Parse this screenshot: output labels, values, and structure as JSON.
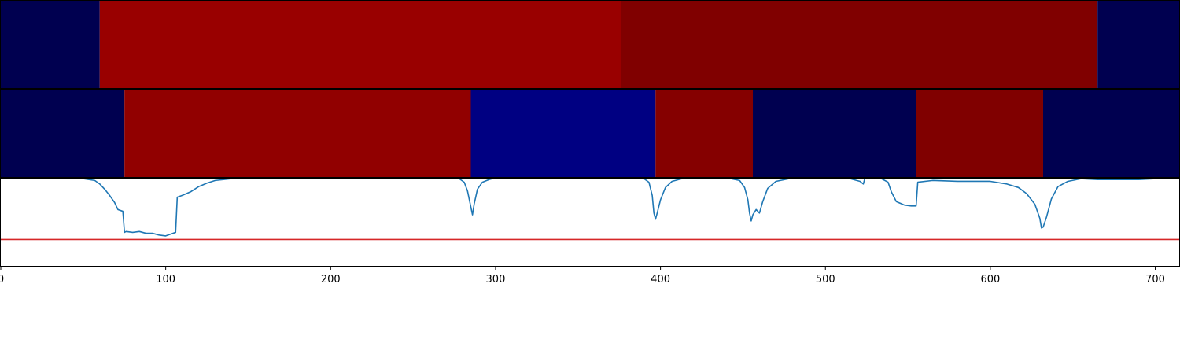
{
  "chart_data": {
    "type": "line",
    "title": "",
    "xlabel": "",
    "ylabel": "",
    "xlim": [
      0,
      715
    ],
    "ylim": [
      0,
      1
    ],
    "grid": false,
    "xticks": [
      0,
      100,
      200,
      300,
      400,
      500,
      600,
      700
    ],
    "segment_rows": [
      {
        "name": "",
        "segments": [
          {
            "start": 0,
            "end": 60,
            "color": "#000050"
          },
          {
            "start": 60,
            "end": 376,
            "color": "#990000"
          },
          {
            "start": 376,
            "end": 665,
            "color": "#800000"
          },
          {
            "start": 665,
            "end": 715,
            "color": "#000050"
          }
        ]
      },
      {
        "name": "",
        "segments": [
          {
            "start": 0,
            "end": 75,
            "color": "#000050"
          },
          {
            "start": 75,
            "end": 285,
            "color": "#910000"
          },
          {
            "start": 285,
            "end": 397,
            "color": "#000082"
          },
          {
            "start": 397,
            "end": 456,
            "color": "#850000"
          },
          {
            "start": 456,
            "end": 555,
            "color": "#000050"
          },
          {
            "start": 555,
            "end": 632,
            "color": "#800000"
          },
          {
            "start": 632,
            "end": 715,
            "color": "#000050"
          }
        ]
      }
    ],
    "series": [
      {
        "name": "",
        "color": "#1f77b4",
        "points": [
          [
            0,
            1.0
          ],
          [
            40,
            1.0
          ],
          [
            50,
            0.99
          ],
          [
            57,
            0.97
          ],
          [
            60,
            0.93
          ],
          [
            63,
            0.87
          ],
          [
            66,
            0.8
          ],
          [
            69,
            0.72
          ],
          [
            71,
            0.64
          ],
          [
            74,
            0.62
          ],
          [
            75,
            0.38
          ],
          [
            76,
            0.39
          ],
          [
            80,
            0.38
          ],
          [
            84,
            0.39
          ],
          [
            88,
            0.37
          ],
          [
            92,
            0.37
          ],
          [
            96,
            0.35
          ],
          [
            100,
            0.34
          ],
          [
            103,
            0.36
          ],
          [
            106,
            0.38
          ],
          [
            107,
            0.78
          ],
          [
            110,
            0.8
          ],
          [
            115,
            0.84
          ],
          [
            120,
            0.9
          ],
          [
            125,
            0.94
          ],
          [
            130,
            0.97
          ],
          [
            140,
            0.99
          ],
          [
            150,
            1.0
          ],
          [
            270,
            1.0
          ],
          [
            278,
            0.99
          ],
          [
            281,
            0.95
          ],
          [
            283,
            0.85
          ],
          [
            285,
            0.67
          ],
          [
            286,
            0.58
          ],
          [
            287,
            0.7
          ],
          [
            289,
            0.87
          ],
          [
            292,
            0.95
          ],
          [
            296,
            0.98
          ],
          [
            300,
            1.0
          ],
          [
            380,
            1.0
          ],
          [
            390,
            0.99
          ],
          [
            393,
            0.95
          ],
          [
            395,
            0.8
          ],
          [
            396,
            0.6
          ],
          [
            397,
            0.53
          ],
          [
            398,
            0.6
          ],
          [
            400,
            0.75
          ],
          [
            403,
            0.89
          ],
          [
            407,
            0.96
          ],
          [
            415,
            1.0
          ],
          [
            440,
            1.0
          ],
          [
            448,
            0.97
          ],
          [
            451,
            0.89
          ],
          [
            453,
            0.75
          ],
          [
            454,
            0.6
          ],
          [
            455,
            0.51
          ],
          [
            456,
            0.58
          ],
          [
            458,
            0.64
          ],
          [
            460,
            0.6
          ],
          [
            462,
            0.73
          ],
          [
            465,
            0.88
          ],
          [
            470,
            0.96
          ],
          [
            478,
            0.99
          ],
          [
            490,
            1.0
          ],
          [
            515,
            0.99
          ],
          [
            521,
            0.96
          ],
          [
            523,
            0.93
          ],
          [
            524,
            1.0
          ],
          [
            533,
            1.0
          ],
          [
            538,
            0.95
          ],
          [
            540,
            0.84
          ],
          [
            543,
            0.73
          ],
          [
            548,
            0.69
          ],
          [
            552,
            0.68
          ],
          [
            555,
            0.68
          ],
          [
            556,
            0.95
          ],
          [
            565,
            0.97
          ],
          [
            580,
            0.96
          ],
          [
            600,
            0.96
          ],
          [
            610,
            0.93
          ],
          [
            617,
            0.89
          ],
          [
            622,
            0.82
          ],
          [
            627,
            0.7
          ],
          [
            630,
            0.54
          ],
          [
            631,
            0.43
          ],
          [
            632,
            0.44
          ],
          [
            634,
            0.55
          ],
          [
            637,
            0.76
          ],
          [
            641,
            0.9
          ],
          [
            647,
            0.96
          ],
          [
            655,
            0.99
          ],
          [
            665,
            0.98
          ],
          [
            690,
            0.98
          ],
          [
            700,
            0.99
          ],
          [
            715,
            1.0
          ]
        ]
      }
    ],
    "threshold": {
      "value": 0.3,
      "color": "#d62728"
    }
  }
}
